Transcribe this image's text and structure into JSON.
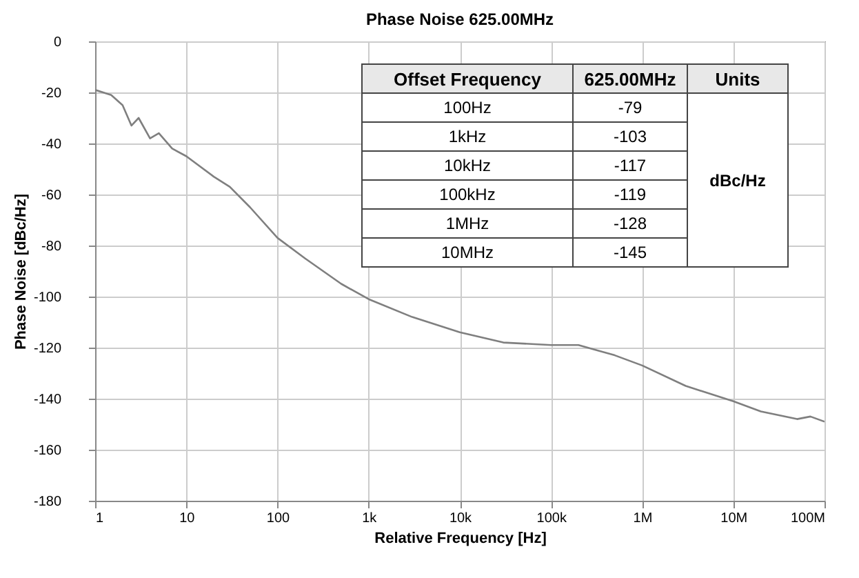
{
  "chart_data": {
    "type": "line",
    "title": "Phase Noise 625.00MHz",
    "xlabel": "Relative Frequency [Hz]",
    "ylabel": "Phase Noise [dBc/Hz]",
    "log": "x",
    "grid": true,
    "marker": "none",
    "line_style": "solid",
    "xlim": [
      1,
      100000000
    ],
    "ylim": [
      -180,
      0
    ],
    "xticks": [
      1,
      10,
      100,
      {
        "value": 1000,
        "label": "1k"
      },
      {
        "value": 10000,
        "label": "10k"
      },
      {
        "value": 100000,
        "label": "100k"
      },
      {
        "value": 1000000,
        "label": "1M"
      },
      {
        "value": 10000000,
        "label": "10M"
      },
      {
        "value": 100000000,
        "label": "100M"
      }
    ],
    "yticks": [
      -180,
      -160,
      -140,
      -120,
      -100,
      -80,
      -60,
      -40,
      -20,
      0
    ],
    "series": [
      {
        "color": "#7f7f7f",
        "x": [
          1,
          1.5,
          2,
          2.5,
          3,
          4,
          5,
          7,
          10,
          20,
          30,
          50,
          100,
          200,
          500,
          1000,
          3000,
          10000,
          30000,
          100000,
          200000,
          500000,
          1000000,
          3000000,
          10000000,
          20000000,
          50000000,
          70000000,
          100000000
        ],
        "values": [
          -19,
          -21,
          -25,
          -33,
          -30,
          -38,
          -36,
          -42,
          -45,
          -53,
          -57,
          -65,
          -77,
          -85,
          -95,
          -101,
          -108,
          -114,
          -118,
          -119,
          -119,
          -123,
          -127,
          -135,
          -141,
          -145,
          -148,
          -147,
          -149
        ]
      }
    ],
    "annotations": [
      "Offset Frequency",
      "625.00MHz",
      "Units",
      "100Hz",
      "-79",
      "1kHz",
      "-103",
      "10kHz",
      "-117",
      "100kHz",
      "-119",
      "1MHz",
      "-128",
      "10MHz",
      "-145",
      "dBc/Hz"
    ]
  }
}
